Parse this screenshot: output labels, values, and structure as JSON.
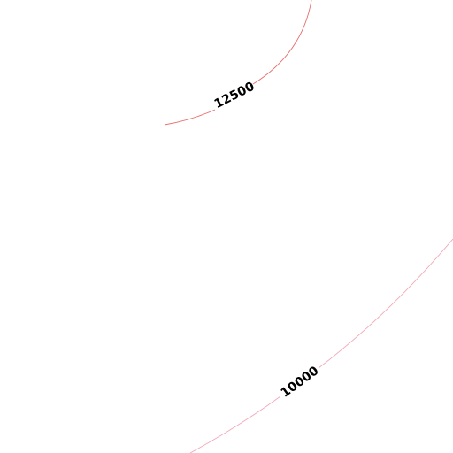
{
  "contours": [
    {
      "label": "12500"
    },
    {
      "label": "10000"
    }
  ]
}
